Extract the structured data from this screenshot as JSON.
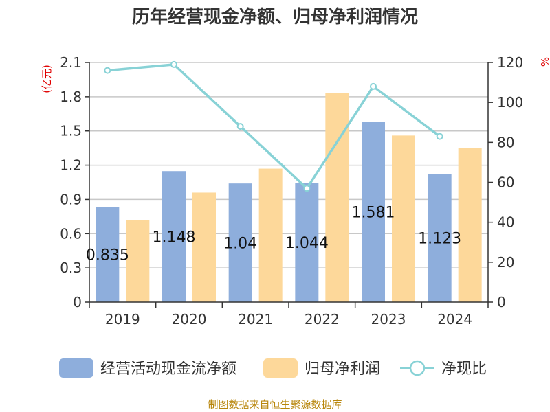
{
  "chart_data": {
    "type": "bar",
    "title": "历年经营现金净额、归母净利润情况",
    "categories": [
      "2019",
      "2020",
      "2021",
      "2022",
      "2023",
      "2024"
    ],
    "series": [
      {
        "name": "经营活动现金流净额",
        "kind": "bar",
        "axis": "left",
        "color": "#8eaedc",
        "values": [
          0.835,
          1.148,
          1.04,
          1.044,
          1.581,
          1.123
        ],
        "labels": [
          "0.835",
          "1.148",
          "1.04",
          "1.044",
          "1.581",
          "1.123"
        ]
      },
      {
        "name": "归母净利润",
        "kind": "bar",
        "axis": "left",
        "color": "#fdd89a",
        "values": [
          0.72,
          0.96,
          1.17,
          1.83,
          1.46,
          1.35
        ]
      },
      {
        "name": "净现比",
        "kind": "line",
        "axis": "right",
        "color": "#88d2d6",
        "values": [
          116,
          119,
          88,
          57,
          108,
          83
        ]
      }
    ],
    "y_left": {
      "unit": "(亿元)",
      "min": 0,
      "max": 2.1,
      "ticks": [
        "0",
        "0.3",
        "0.6",
        "0.9",
        "1.2",
        "1.5",
        "1.8",
        "2.1"
      ]
    },
    "y_right": {
      "unit": "%",
      "min": 0,
      "max": 120,
      "ticks": [
        "0",
        "20",
        "40",
        "60",
        "80",
        "100",
        "120"
      ]
    },
    "legend": "bottom",
    "grid": true
  },
  "source": "制图数据来自恒生聚源数据库"
}
